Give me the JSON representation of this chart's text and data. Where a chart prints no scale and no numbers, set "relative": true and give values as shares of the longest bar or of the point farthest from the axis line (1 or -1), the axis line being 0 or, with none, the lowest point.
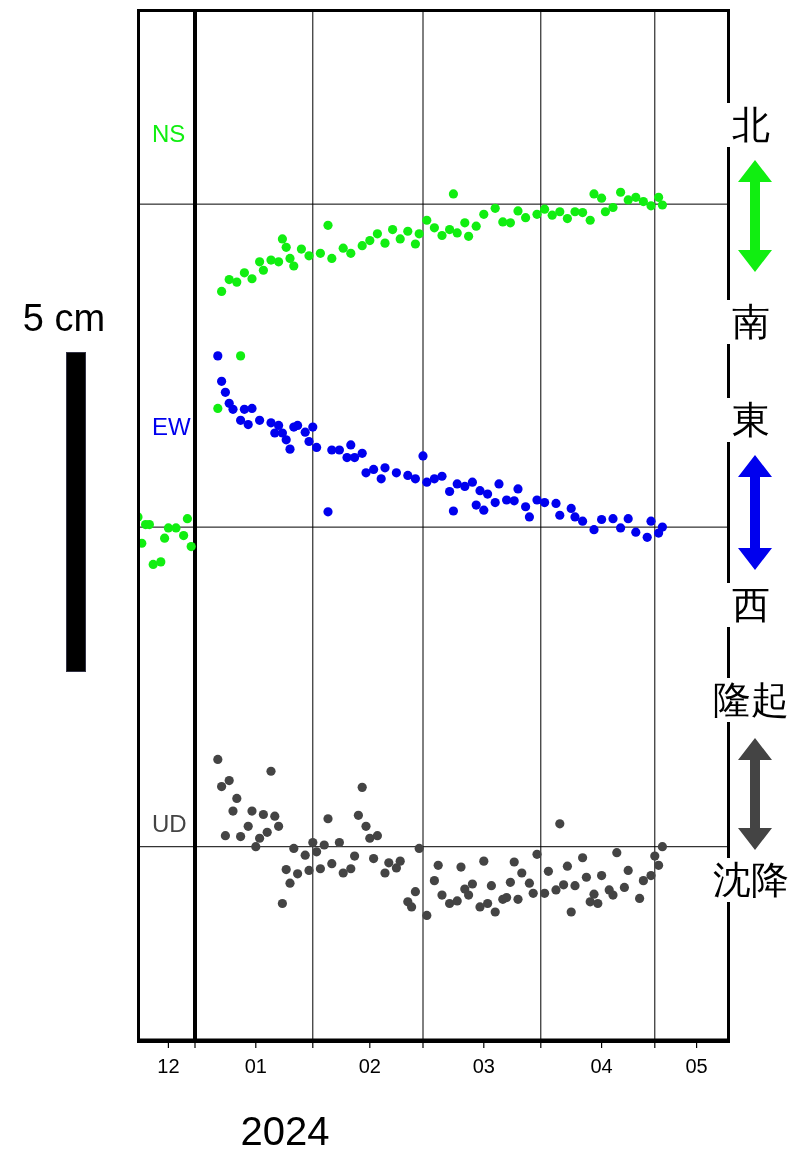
{
  "chart_data": {
    "type": "scatter",
    "xlabel": "2024",
    "relative": true,
    "marker": "circle",
    "grid": "x",
    "xlim": [
      "2023-12-17",
      "2024-05-20"
    ],
    "xticks": [
      {
        "value": "2023-12-25",
        "label": "12"
      },
      {
        "value": "2024-01-01",
        "label": null
      },
      {
        "value": "2024-01-17",
        "label": "01"
      },
      {
        "value": "2024-02-01",
        "label": null
      },
      {
        "value": "2024-02-16",
        "label": "02"
      },
      {
        "value": "2024-03-01",
        "label": null
      },
      {
        "value": "2024-03-17",
        "label": "03"
      },
      {
        "value": "2024-04-01",
        "label": null
      },
      {
        "value": "2024-04-17",
        "label": "04"
      },
      {
        "value": "2024-05-01",
        "label": null
      },
      {
        "value": "2024-05-12",
        "label": "05"
      }
    ],
    "ref_lines": [
      {
        "axis": "x",
        "value": "2024-01-01",
        "color": "#000000"
      },
      {
        "axis": "y",
        "value": 0.986,
        "color": "#000000"
      },
      {
        "axis": "y",
        "value": 0.605,
        "color": "#000000"
      },
      {
        "axis": "y",
        "value": 0.228,
        "color": "#000000"
      }
    ],
    "annotations": [
      "5 cm",
      "北",
      "南",
      "東",
      "西",
      "隆起",
      "沈降"
    ],
    "series": [
      {
        "name": "NS",
        "color": "#11ee11",
        "x": [
          "2023-12-17",
          "2023-12-18",
          "2023-12-19",
          "2023-12-20",
          "2023-12-21",
          "2023-12-23",
          "2023-12-24",
          "2023-12-25",
          "2023-12-27",
          "2023-12-29",
          "2023-12-30",
          "2023-12-31",
          "2024-01-07",
          "2024-01-08",
          "2024-01-10",
          "2024-01-12",
          "2024-01-13",
          "2024-01-14",
          "2024-01-16",
          "2024-01-18",
          "2024-01-19",
          "2024-01-21",
          "2024-01-23",
          "2024-01-24",
          "2024-01-25",
          "2024-01-26",
          "2024-01-27",
          "2024-01-29",
          "2024-01-31",
          "2024-02-03",
          "2024-02-05",
          "2024-02-06",
          "2024-02-09",
          "2024-02-11",
          "2024-02-14",
          "2024-02-16",
          "2024-02-18",
          "2024-02-20",
          "2024-02-22",
          "2024-02-24",
          "2024-02-26",
          "2024-02-28",
          "2024-02-29",
          "2024-03-02",
          "2024-03-04",
          "2024-03-06",
          "2024-03-08",
          "2024-03-09",
          "2024-03-10",
          "2024-03-12",
          "2024-03-13",
          "2024-03-15",
          "2024-03-17",
          "2024-03-20",
          "2024-03-22",
          "2024-03-24",
          "2024-03-26",
          "2024-03-28",
          "2024-03-31",
          "2024-04-02",
          "2024-04-04",
          "2024-04-06",
          "2024-04-08",
          "2024-04-10",
          "2024-04-12",
          "2024-04-14",
          "2024-04-15",
          "2024-04-17",
          "2024-04-18",
          "2024-04-20",
          "2024-04-22",
          "2024-04-24",
          "2024-04-26",
          "2024-04-28",
          "2024-04-30",
          "2024-05-02",
          "2024-05-03"
        ],
        "values": [
          0.617,
          0.586,
          0.608,
          0.608,
          0.561,
          0.564,
          0.592,
          0.604,
          0.604,
          0.595,
          0.615,
          0.582,
          0.745,
          0.883,
          0.897,
          0.894,
          0.807,
          0.905,
          0.898,
          0.918,
          0.908,
          0.92,
          0.918,
          0.945,
          0.935,
          0.922,
          0.913,
          0.933,
          0.925,
          0.928,
          0.961,
          0.922,
          0.934,
          0.928,
          0.937,
          0.943,
          0.951,
          0.94,
          0.956,
          0.945,
          0.954,
          0.939,
          0.951,
          0.967,
          0.958,
          0.949,
          0.956,
          0.998,
          0.952,
          0.964,
          0.948,
          0.96,
          0.974,
          0.981,
          0.965,
          0.964,
          0.978,
          0.97,
          0.974,
          0.98,
          0.973,
          0.977,
          0.969,
          0.977,
          0.976,
          0.967,
          0.998,
          0.993,
          0.977,
          0.982,
          1,
          0.991,
          0.994,
          0.989,
          0.984,
          0.994,
          0.985
        ]
      },
      {
        "name": "EW",
        "color": "#0000ee",
        "x": [
          "2024-01-07",
          "2024-01-08",
          "2024-01-09",
          "2024-01-10",
          "2024-01-11",
          "2024-01-13",
          "2024-01-14",
          "2024-01-15",
          "2024-01-16",
          "2024-01-18",
          "2024-01-21",
          "2024-01-22",
          "2024-01-23",
          "2024-01-24",
          "2024-01-25",
          "2024-01-26",
          "2024-01-27",
          "2024-01-28",
          "2024-01-30",
          "2024-01-31",
          "2024-02-01",
          "2024-02-02",
          "2024-02-05",
          "2024-02-06",
          "2024-02-08",
          "2024-02-10",
          "2024-02-11",
          "2024-02-12",
          "2024-02-14",
          "2024-02-15",
          "2024-02-17",
          "2024-02-19",
          "2024-02-20",
          "2024-02-23",
          "2024-02-26",
          "2024-02-28",
          "2024-03-01",
          "2024-03-02",
          "2024-03-04",
          "2024-03-06",
          "2024-03-08",
          "2024-03-09",
          "2024-03-10",
          "2024-03-12",
          "2024-03-14",
          "2024-03-15",
          "2024-03-16",
          "2024-03-17",
          "2024-03-18",
          "2024-03-20",
          "2024-03-21",
          "2024-03-23",
          "2024-03-25",
          "2024-03-26",
          "2024-03-28",
          "2024-03-29",
          "2024-03-31",
          "2024-04-02",
          "2024-04-05",
          "2024-04-06",
          "2024-04-09",
          "2024-04-10",
          "2024-04-12",
          "2024-04-15",
          "2024-04-17",
          "2024-04-20",
          "2024-04-22",
          "2024-04-24",
          "2024-04-26",
          "2024-04-29",
          "2024-04-30",
          "2024-05-02",
          "2024-05-03"
        ],
        "values": [
          0.807,
          0.777,
          0.764,
          0.751,
          0.744,
          0.731,
          0.744,
          0.726,
          0.745,
          0.731,
          0.728,
          0.716,
          0.725,
          0.716,
          0.708,
          0.697,
          0.723,
          0.725,
          0.717,
          0.706,
          0.723,
          0.699,
          0.623,
          0.696,
          0.696,
          0.687,
          0.702,
          0.687,
          0.692,
          0.669,
          0.673,
          0.662,
          0.675,
          0.669,
          0.666,
          0.662,
          0.689,
          0.658,
          0.662,
          0.665,
          0.647,
          0.624,
          0.656,
          0.653,
          0.658,
          0.631,
          0.648,
          0.625,
          0.644,
          0.634,
          0.656,
          0.637,
          0.636,
          0.65,
          0.629,
          0.617,
          0.637,
          0.634,
          0.633,
          0.619,
          0.627,
          0.617,
          0.612,
          0.602,
          0.614,
          0.615,
          0.604,
          0.615,
          0.599,
          0.593,
          0.612,
          0.598,
          0.605
        ]
      },
      {
        "name": "UD",
        "color": "#444444",
        "x": [
          "2024-01-07",
          "2024-01-08",
          "2024-01-09",
          "2024-01-10",
          "2024-01-11",
          "2024-01-12",
          "2024-01-13",
          "2024-01-15",
          "2024-01-16",
          "2024-01-17",
          "2024-01-18",
          "2024-01-19",
          "2024-01-20",
          "2024-01-21",
          "2024-01-22",
          "2024-01-23",
          "2024-01-24",
          "2024-01-25",
          "2024-01-26",
          "2024-01-27",
          "2024-01-28",
          "2024-01-30",
          "2024-01-31",
          "2024-02-01",
          "2024-02-02",
          "2024-02-03",
          "2024-02-04",
          "2024-02-05",
          "2024-02-06",
          "2024-02-08",
          "2024-02-09",
          "2024-02-11",
          "2024-02-12",
          "2024-02-13",
          "2024-02-14",
          "2024-02-15",
          "2024-02-16",
          "2024-02-17",
          "2024-02-18",
          "2024-02-20",
          "2024-02-21",
          "2024-02-23",
          "2024-02-24",
          "2024-02-26",
          "2024-02-27",
          "2024-02-28",
          "2024-02-29",
          "2024-03-02",
          "2024-03-04",
          "2024-03-05",
          "2024-03-06",
          "2024-03-08",
          "2024-03-10",
          "2024-03-11",
          "2024-03-12",
          "2024-03-13",
          "2024-03-14",
          "2024-03-16",
          "2024-03-17",
          "2024-03-18",
          "2024-03-19",
          "2024-03-20",
          "2024-03-22",
          "2024-03-23",
          "2024-03-24",
          "2024-03-25",
          "2024-03-26",
          "2024-03-27",
          "2024-03-29",
          "2024-03-30",
          "2024-03-31",
          "2024-04-02",
          "2024-04-03",
          "2024-04-05",
          "2024-04-06",
          "2024-04-07",
          "2024-04-08",
          "2024-04-09",
          "2024-04-10",
          "2024-04-12",
          "2024-04-13",
          "2024-04-14",
          "2024-04-15",
          "2024-04-16",
          "2024-04-17",
          "2024-04-19",
          "2024-04-20",
          "2024-04-21",
          "2024-04-23",
          "2024-04-24",
          "2024-04-27",
          "2024-04-28",
          "2024-04-30",
          "2024-05-01",
          "2024-05-02",
          "2024-05-03"
        ],
        "values": [
          0.331,
          0.299,
          0.241,
          0.306,
          0.27,
          0.285,
          0.24,
          0.252,
          0.27,
          0.228,
          0.238,
          0.266,
          0.245,
          0.317,
          0.264,
          0.252,
          0.161,
          0.201,
          0.185,
          0.226,
          0.196,
          0.218,
          0.2,
          0.233,
          0.222,
          0.202,
          0.23,
          0.261,
          0.208,
          0.233,
          0.197,
          0.202,
          0.217,
          0.265,
          0.298,
          0.252,
          0.238,
          0.214,
          0.241,
          0.197,
          0.209,
          0.203,
          0.211,
          0.163,
          0.157,
          0.175,
          0.226,
          0.147,
          0.188,
          0.206,
          0.171,
          0.161,
          0.164,
          0.204,
          0.178,
          0.171,
          0.184,
          0.157,
          0.211,
          0.161,
          0.182,
          0.151,
          0.166,
          0.168,
          0.186,
          0.21,
          0.166,
          0.197,
          0.185,
          0.173,
          0.219,
          0.173,
          0.199,
          0.177,
          0.255,
          0.183,
          0.205,
          0.151,
          0.182,
          0.215,
          0.192,
          0.163,
          0.172,
          0.161,
          0.194,
          0.177,
          0.171,
          0.221,
          0.18,
          0.2,
          0.167,
          0.188,
          0.194,
          0.217,
          0.206,
          0.228
        ]
      }
    ]
  }
}
